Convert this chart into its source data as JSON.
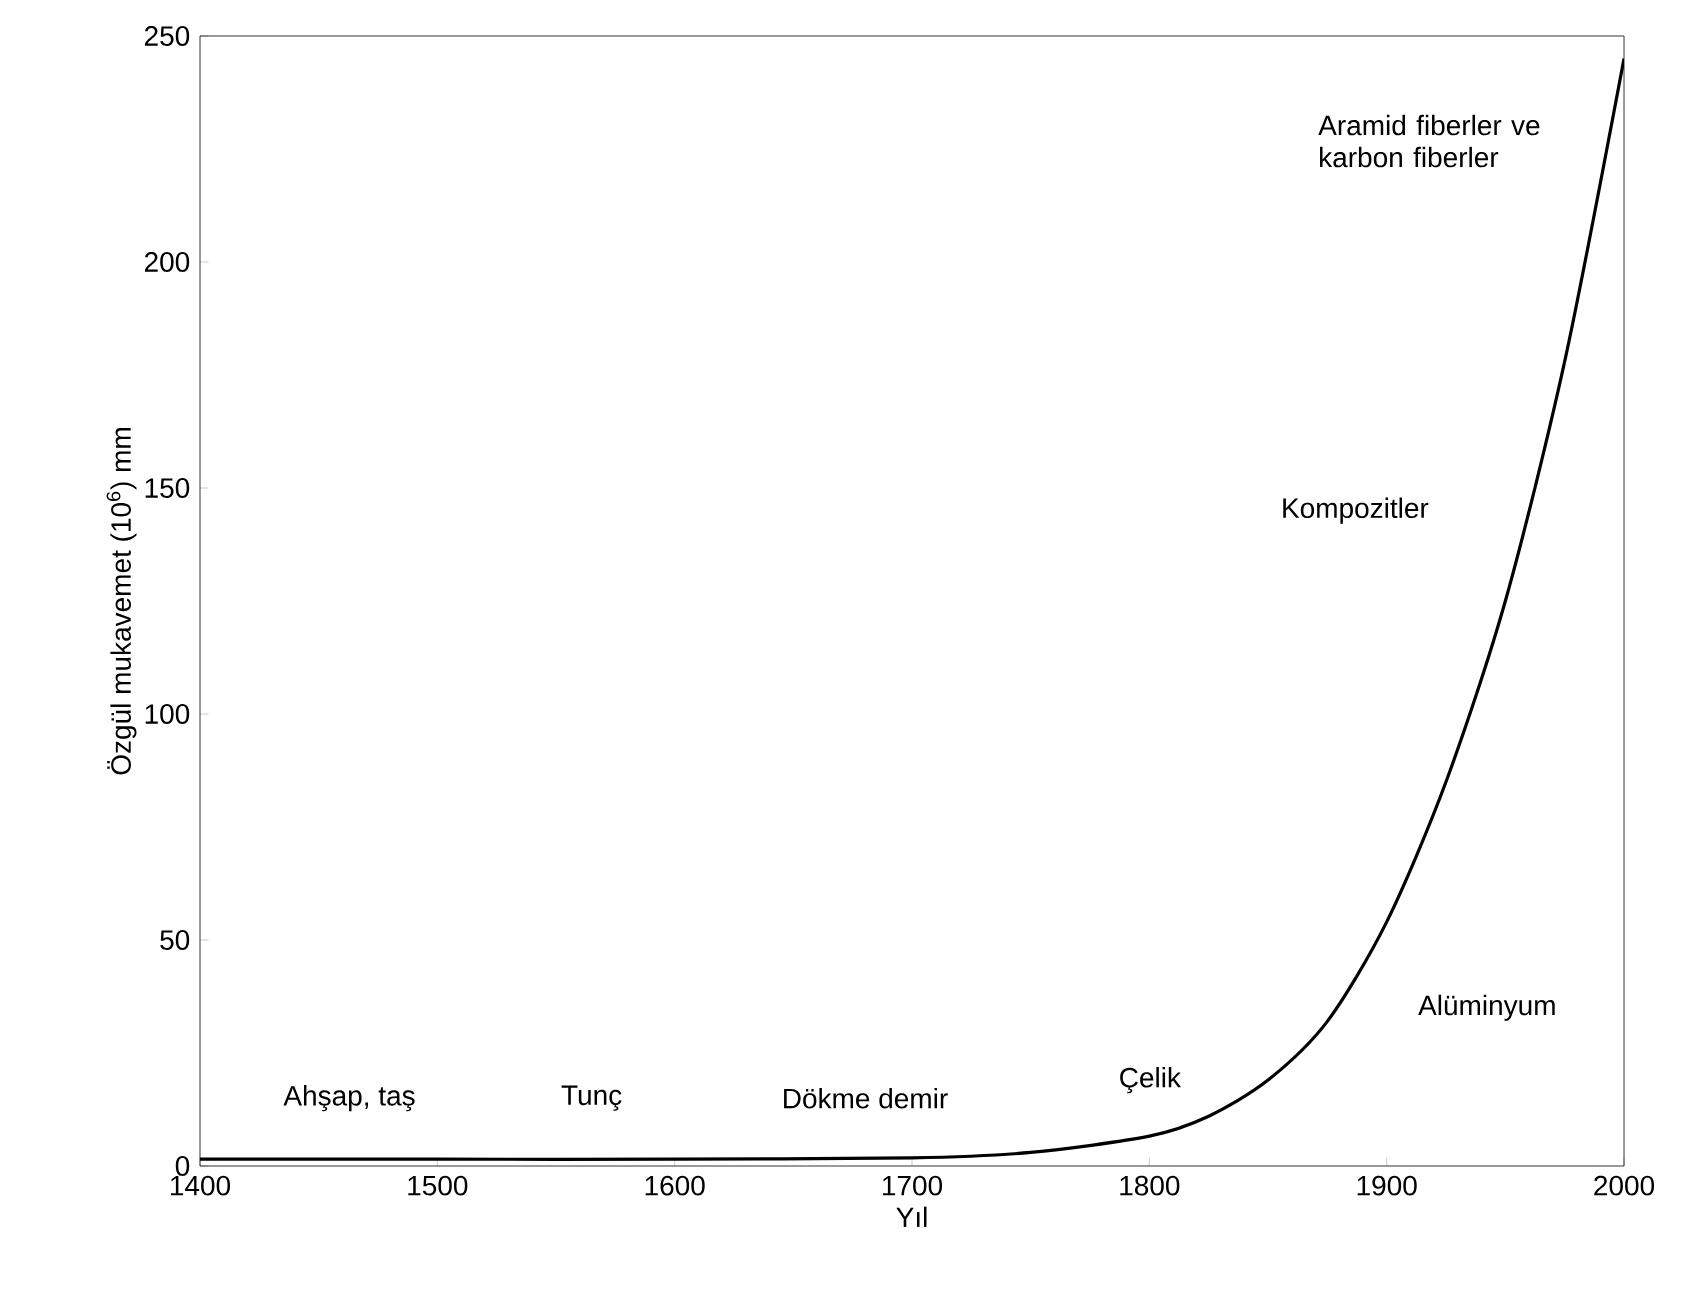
{
  "chart_data": {
    "type": "line",
    "xlabel": "Yıl",
    "ylabel": "Özgül mukavemet (10$^{6}$) mm",
    "x": [
      1400,
      1500,
      1600,
      1700,
      1750,
      1800,
      1825,
      1850,
      1875,
      1900,
      1925,
      1950,
      1975,
      2000
    ],
    "series": [
      {
        "color": "#000000",
        "values": [
          1.5,
          1.5,
          1.5,
          1.8,
          3,
          6.6,
          11,
          19,
          32,
          54,
          85,
          125,
          178,
          245
        ]
      }
    ],
    "xlim": [
      1400,
      2000
    ],
    "ylim": [
      0,
      250
    ],
    "xticks": [
      1400,
      1500,
      1600,
      1700,
      1800,
      1900,
      2000
    ],
    "yticks": [
      0,
      50,
      100,
      150,
      200,
      250
    ],
    "grid": false,
    "marker": "none",
    "line_style": "solid",
    "annotations": [
      "Ahşap, taş",
      "Tunç",
      "Dökme demir",
      "Çelik",
      "Alüminyum",
      "Kompozitler",
      "Aramid fiberler ve karbon fiberler"
    ]
  }
}
